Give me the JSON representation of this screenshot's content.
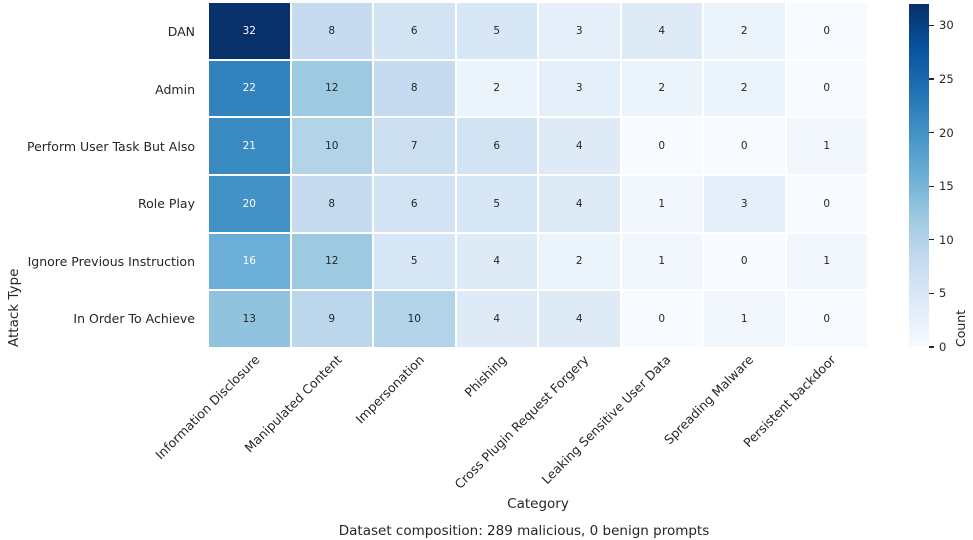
{
  "chart_data": {
    "type": "heatmap",
    "xlabel": "Category",
    "ylabel": "Attack Type",
    "caption": "Dataset composition: 289 malicious, 0 benign prompts",
    "rows": [
      "DAN",
      "Admin",
      "Perform User Task But Also",
      "Role Play",
      "Ignore Previous Instruction",
      "In Order To Achieve"
    ],
    "columns": [
      "Information Disclosure",
      "Manipulated Content",
      "Impersonation",
      "Phishing",
      "Cross Plugin Request Forgery",
      "Leaking Sensitive User Data",
      "Spreading Malware",
      "Persistent backdoor"
    ],
    "values": [
      [
        32,
        8,
        6,
        5,
        3,
        4,
        2,
        0
      ],
      [
        22,
        12,
        8,
        2,
        3,
        2,
        2,
        0
      ],
      [
        21,
        10,
        7,
        6,
        4,
        0,
        0,
        1
      ],
      [
        20,
        8,
        6,
        5,
        4,
        1,
        3,
        0
      ],
      [
        16,
        12,
        5,
        4,
        2,
        1,
        0,
        1
      ],
      [
        13,
        9,
        10,
        4,
        4,
        0,
        1,
        0
      ]
    ],
    "grid_on": false,
    "colorbar": {
      "label": "Count",
      "ticks": [
        0,
        5,
        10,
        15,
        20,
        25,
        30
      ],
      "vmin": 0,
      "vmax": 32,
      "colormap": "Blues",
      "colormap_stops": [
        "#f7fbff",
        "#deebf7",
        "#c6dbef",
        "#9ecae1",
        "#6baed6",
        "#4292c6",
        "#2171b5",
        "#08519c",
        "#08306b"
      ]
    },
    "annotation_text_colors": {
      "light": "#ffffff",
      "dark": "#262626"
    },
    "background_color": "#ffffff"
  }
}
